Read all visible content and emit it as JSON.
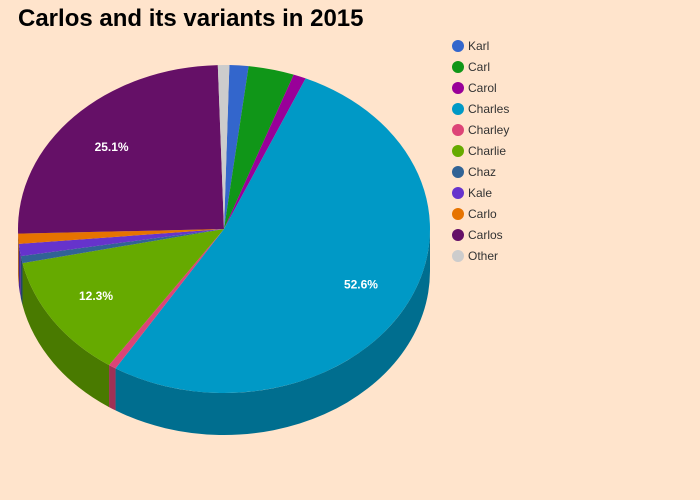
{
  "chart_data": {
    "type": "pie",
    "title": "Carlos and its variants in 2015",
    "legend_placement": "top-right",
    "slices": [
      {
        "name": "Karl",
        "value": 1.5,
        "color": "#3366cc"
      },
      {
        "name": "Carl",
        "value": 3.6,
        "color": "#109618"
      },
      {
        "name": "Carol",
        "value": 1.0,
        "color": "#990099"
      },
      {
        "name": "Charles",
        "value": 52.6,
        "color": "#0099c6",
        "label": "52.6%"
      },
      {
        "name": "Charley",
        "value": 0.6,
        "color": "#dd4477"
      },
      {
        "name": "Charlie",
        "value": 12.3,
        "color": "#66aa00",
        "label": "12.3%"
      },
      {
        "name": "Chaz",
        "value": 0.7,
        "color": "#316395"
      },
      {
        "name": "Kale",
        "value": 1.2,
        "color": "#6633cc"
      },
      {
        "name": "Carlo",
        "value": 1.0,
        "color": "#e67300"
      },
      {
        "name": "Carlos",
        "value": 25.1,
        "color": "#651067",
        "label": "25.1%"
      },
      {
        "name": "Other",
        "value": 0.9,
        "color": "#cccccc"
      }
    ]
  }
}
